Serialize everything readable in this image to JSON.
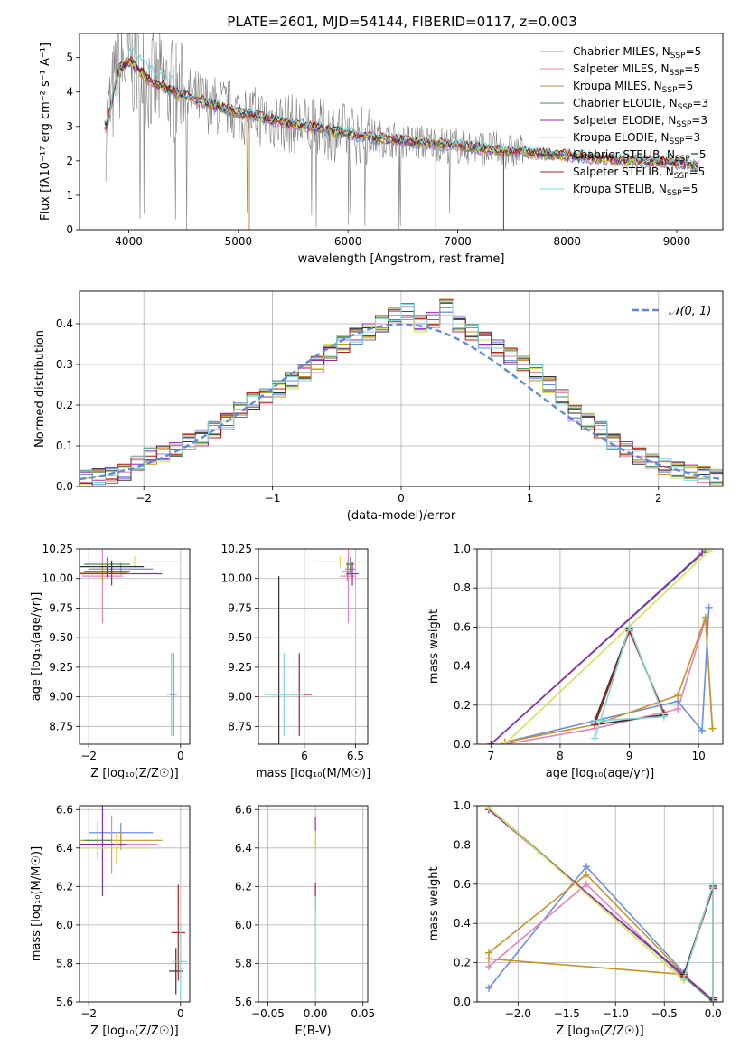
{
  "title": "PLATE=2601, MJD=54144, FIBERID=0117, z=0.003",
  "chart_data": [
    {
      "id": "spectrum",
      "type": "line",
      "xlabel": "wavelength [Angstrom, rest frame]",
      "ylabel": "Flux [fλ10⁻¹⁷ erg cm⁻² s⁻¹ A⁻¹]",
      "xlim": [
        3550,
        9420
      ],
      "ylim": [
        0,
        5.7
      ],
      "xticks": [
        4000,
        5000,
        6000,
        7000,
        8000,
        9000
      ],
      "yticks": [
        0,
        1,
        2,
        3,
        4,
        5
      ],
      "grid": false,
      "legend_position": "top-right",
      "data_color": "#808080",
      "data_trend": {
        "x": [
          3800,
          3900,
          4000,
          4200,
          4500,
          4800,
          5000,
          5300,
          5600,
          6000,
          6300,
          6600,
          7000,
          7400,
          7800,
          8200,
          8600,
          9000,
          9200
        ],
        "y": [
          3.0,
          4.6,
          4.9,
          4.3,
          3.9,
          3.6,
          3.4,
          3.2,
          3.0,
          2.8,
          2.65,
          2.55,
          2.45,
          2.3,
          2.2,
          2.1,
          2.0,
          1.95,
          1.85
        ]
      },
      "series": [
        {
          "name": "Chabrier MILES, N$_{SSP}$=5",
          "legend": "Chabrier MILES, N",
          "sub": "SSP",
          "tail": "=5",
          "color": "#6b8ee0"
        },
        {
          "name": "Salpeter MILES, N$_{SSP}$=5",
          "legend": "Salpeter MILES, N",
          "sub": "SSP",
          "tail": "=5",
          "color": "#e583b8"
        },
        {
          "name": "Kroupa MILES, N$_{SSP}$=5",
          "legend": "Kroupa MILES, N",
          "sub": "SSP",
          "tail": "=5",
          "color": "#c7932b"
        },
        {
          "name": "Chabrier ELODIE, N$_{SSP}$=3",
          "legend": "Chabrier ELODIE, N",
          "sub": "SSP",
          "tail": "=3",
          "color": "#4d8a4d"
        },
        {
          "name": "Salpeter ELODIE, N$_{SSP}$=3",
          "legend": "Salpeter ELODIE, N",
          "sub": "SSP",
          "tail": "=3",
          "color": "#8e2bb5"
        },
        {
          "name": "Kroupa ELODIE, N$_{SSP}$=3",
          "legend": "Kroupa ELODIE, N",
          "sub": "SSP",
          "tail": "=3",
          "color": "#d6e05a"
        },
        {
          "name": "Chabrier STELIB, N$_{SSP}$=5",
          "legend": "Chabrier STELIB, N",
          "sub": "SSP",
          "tail": "=5",
          "color": "#333333"
        },
        {
          "name": "Salpeter STELIB, N$_{SSP}$=5",
          "legend": "Salpeter STELIB, N",
          "sub": "SSP",
          "tail": "=5",
          "color": "#b51f1f"
        },
        {
          "name": "Kroupa STELIB, N$_{SSP}$=5",
          "legend": "Kroupa STELIB, N",
          "sub": "SSP",
          "tail": "=5",
          "color": "#7fd6d6"
        }
      ]
    },
    {
      "id": "residuals",
      "type": "line",
      "xlabel": "(data-model)/error",
      "ylabel": "Normed distribution",
      "xlim": [
        -2.5,
        2.5
      ],
      "ylim": [
        0,
        0.48
      ],
      "xticks": [
        -2,
        -1,
        0,
        1,
        2
      ],
      "yticks": [
        0.0,
        0.1,
        0.2,
        0.3,
        0.4
      ],
      "grid": true,
      "legend_position": "top-right",
      "legend": "𝒩(0, 1)",
      "gauss_color": "#5b8bd6",
      "hist_x": [
        -2.5,
        -2.4,
        -2.3,
        -2.2,
        -2.1,
        -2.0,
        -1.9,
        -1.8,
        -1.7,
        -1.6,
        -1.5,
        -1.4,
        -1.3,
        -1.2,
        -1.1,
        -1.0,
        -0.9,
        -0.8,
        -0.7,
        -0.6,
        -0.5,
        -0.4,
        -0.3,
        -0.2,
        -0.1,
        0.0,
        0.1,
        0.2,
        0.3,
        0.4,
        0.5,
        0.6,
        0.7,
        0.8,
        0.9,
        1.0,
        1.1,
        1.2,
        1.3,
        1.4,
        1.5,
        1.6,
        1.7,
        1.8,
        1.9,
        2.0,
        2.1,
        2.2,
        2.3,
        2.4
      ],
      "hist_y": [
        0.02,
        0.025,
        0.028,
        0.035,
        0.055,
        0.075,
        0.08,
        0.09,
        0.11,
        0.12,
        0.14,
        0.16,
        0.19,
        0.21,
        0.22,
        0.24,
        0.26,
        0.28,
        0.3,
        0.33,
        0.35,
        0.37,
        0.38,
        0.4,
        0.42,
        0.43,
        0.4,
        0.41,
        0.44,
        0.4,
        0.38,
        0.36,
        0.34,
        0.32,
        0.3,
        0.28,
        0.25,
        0.22,
        0.18,
        0.16,
        0.14,
        0.11,
        0.09,
        0.075,
        0.06,
        0.05,
        0.04,
        0.035,
        0.03,
        0.022
      ],
      "hist_jitter": [
        0.01,
        -0.02,
        0.015,
        -0.01,
        0.02,
        -0.015,
        0.0,
        0.012,
        -0.012,
        0.018
      ]
    },
    {
      "id": "age-Z",
      "type": "scatter",
      "xlabel": "Z [log₁₀(Z/Z☉)]",
      "ylabel": "age  [log₁₀(age/yr)]",
      "xlim": [
        -2.2,
        0.2
      ],
      "ylim": [
        8.6,
        10.25
      ],
      "xticks": [
        -2,
        0
      ],
      "yticks": [
        8.75,
        9.0,
        9.25,
        9.5,
        9.75,
        10.0,
        10.25
      ],
      "grid": true,
      "points": [
        {
          "x": -1.3,
          "y": 10.08,
          "xerr": 0.7,
          "yerr": 0.05,
          "s": 0
        },
        {
          "x": -1.7,
          "y": 10.02,
          "xerr": 0.45,
          "yerr": 0.4,
          "s": 1
        },
        {
          "x": -1.7,
          "y": 10.05,
          "xerr": 0.55,
          "yerr": 0.08,
          "s": 2
        },
        {
          "x": -1.6,
          "y": 10.12,
          "xerr": 0.5,
          "yerr": 0.06,
          "s": 3
        },
        {
          "x": -1.5,
          "y": 10.04,
          "xerr": 1.1,
          "yerr": 0.1,
          "s": 4
        },
        {
          "x": -1.0,
          "y": 10.14,
          "xerr": 1.0,
          "yerr": 0.05,
          "s": 5
        },
        {
          "x": -1.5,
          "y": 10.1,
          "xerr": 0.7,
          "yerr": 0.05,
          "s": 6
        },
        {
          "x": -1.6,
          "y": 10.06,
          "xerr": 0.5,
          "yerr": 0.05,
          "s": 7
        },
        {
          "x": -0.2,
          "y": 9.02,
          "xerr": 0.1,
          "yerr": 0.35,
          "s": 8
        },
        {
          "x": -0.15,
          "y": 9.02,
          "xerr": 0.08,
          "yerr": 0.35,
          "s": 0
        }
      ]
    },
    {
      "id": "age-mass",
      "type": "scatter",
      "xlabel": "mass [log₁₀(M/M☉)]",
      "ylabel": "",
      "xlim": [
        5.55,
        6.62
      ],
      "ylim": [
        8.6,
        10.25
      ],
      "xticks": [
        6.0,
        6.5
      ],
      "yticks": [
        8.75,
        9.0,
        9.25,
        9.5,
        9.75,
        10.0,
        10.25
      ],
      "grid": true,
      "points": [
        {
          "x": 6.45,
          "y": 10.08,
          "xerr": 0.05,
          "yerr": 0.05,
          "s": 0
        },
        {
          "x": 6.43,
          "y": 10.02,
          "xerr": 0.08,
          "yerr": 0.4,
          "s": 1
        },
        {
          "x": 6.42,
          "y": 10.06,
          "xerr": 0.05,
          "yerr": 0.08,
          "s": 2
        },
        {
          "x": 6.45,
          "y": 10.12,
          "xerr": 0.04,
          "yerr": 0.06,
          "s": 3
        },
        {
          "x": 6.47,
          "y": 10.04,
          "xerr": 0.06,
          "yerr": 0.1,
          "s": 4
        },
        {
          "x": 6.35,
          "y": 10.14,
          "xerr": 0.25,
          "yerr": 0.05,
          "s": 5
        },
        {
          "x": 5.75,
          "y": 9.02,
          "xerr": 0.05,
          "yerr": 1.0,
          "s": 6
        },
        {
          "x": 5.95,
          "y": 9.02,
          "xerr": 0.12,
          "yerr": 0.35,
          "s": 7
        },
        {
          "x": 5.8,
          "y": 9.02,
          "xerr": 0.2,
          "yerr": 0.35,
          "s": 8
        }
      ]
    },
    {
      "id": "massweight-age",
      "type": "line",
      "xlabel": "age  [log₁₀(age/yr)]",
      "ylabel": "mass weight",
      "xlim": [
        6.8,
        10.35
      ],
      "ylim": [
        0,
        1.0
      ],
      "xticks": [
        7,
        8,
        9,
        10
      ],
      "yticks": [
        0.0,
        0.2,
        0.4,
        0.6,
        0.8,
        1.0
      ],
      "grid": true,
      "lines": [
        {
          "s": 0,
          "x": [
            7.2,
            8.5,
            9.7,
            10.05,
            10.15
          ],
          "y": [
            0.01,
            0.12,
            0.22,
            0.07,
            0.7
          ]
        },
        {
          "s": 1,
          "x": [
            7.2,
            8.5,
            9.7,
            10.1,
            10.2
          ],
          "y": [
            0.0,
            0.08,
            0.18,
            0.64,
            0.08
          ]
        },
        {
          "s": 2,
          "x": [
            7.2,
            8.5,
            9.7,
            10.1,
            10.2
          ],
          "y": [
            0.01,
            0.1,
            0.25,
            0.65,
            0.08
          ]
        },
        {
          "s": 3,
          "x": [
            7.0,
            10.1
          ],
          "y": [
            0.0,
            0.99
          ]
        },
        {
          "s": 4,
          "x": [
            7.0,
            10.05
          ],
          "y": [
            0.0,
            0.98
          ]
        },
        {
          "s": 5,
          "x": [
            7.2,
            10.15
          ],
          "y": [
            0.0,
            0.99
          ]
        },
        {
          "s": 6,
          "x": [
            8.5,
            9.0,
            9.5,
            8.5
          ],
          "y": [
            0.12,
            0.59,
            0.15,
            0.1
          ]
        },
        {
          "s": 7,
          "x": [
            8.5,
            9.0,
            9.5
          ],
          "y": [
            0.1,
            0.58,
            0.16
          ]
        },
        {
          "s": 8,
          "x": [
            8.5,
            9.0,
            9.5,
            8.5
          ],
          "y": [
            0.03,
            0.6,
            0.14,
            0.12
          ]
        }
      ]
    },
    {
      "id": "mass-Z",
      "type": "scatter",
      "xlabel": "Z [log₁₀(Z/Z☉)]",
      "ylabel": "mass [log₁₀(M/M☉)]",
      "xlim": [
        -2.2,
        0.2
      ],
      "ylim": [
        5.6,
        6.62
      ],
      "xticks": [
        -2,
        0
      ],
      "yticks": [
        5.6,
        5.8,
        6.0,
        6.2,
        6.4,
        6.6
      ],
      "grid": true,
      "points": [
        {
          "x": -1.3,
          "y": 6.48,
          "xerr": 0.7,
          "yerr": 0.05,
          "s": 0
        },
        {
          "x": -1.5,
          "y": 6.42,
          "xerr": 1.0,
          "yerr": 0.15,
          "s": 1
        },
        {
          "x": -1.3,
          "y": 6.44,
          "xerr": 0.9,
          "yerr": 0.05,
          "s": 2
        },
        {
          "x": -1.8,
          "y": 6.44,
          "xerr": 0.3,
          "yerr": 0.1,
          "s": 3
        },
        {
          "x": -1.7,
          "y": 6.42,
          "xerr": 0.5,
          "yerr": 0.27,
          "s": 4
        },
        {
          "x": -1.4,
          "y": 6.4,
          "xerr": 0.8,
          "yerr": 0.08,
          "s": 5
        },
        {
          "x": -0.1,
          "y": 5.76,
          "xerr": 0.15,
          "yerr": 0.12,
          "s": 6
        },
        {
          "x": -0.05,
          "y": 5.96,
          "xerr": 0.15,
          "yerr": 0.25,
          "s": 7
        },
        {
          "x": 0.0,
          "y": 5.81,
          "xerr": 0.15,
          "yerr": 0.2,
          "s": 8
        }
      ]
    },
    {
      "id": "mass-ebv",
      "type": "scatter",
      "xlabel": "E(B-V)",
      "ylabel": "",
      "xlim": [
        -0.06,
        0.055
      ],
      "ylim": [
        5.6,
        6.62
      ],
      "xticks": [
        -0.05,
        0.0,
        0.05
      ],
      "xtick_labels": [
        "−0.05",
        "0.00",
        "0.05"
      ],
      "yticks": [
        5.6,
        5.8,
        6.0,
        6.2,
        6.4,
        6.6
      ],
      "grid": true,
      "points": [
        {
          "x": 0.0,
          "y": 6.48,
          "xerr": 0.0,
          "yerr": 0.08,
          "s": 4
        },
        {
          "x": 0.0,
          "y": 6.44,
          "xerr": 0.0,
          "yerr": 0.05,
          "s": 5
        },
        {
          "x": 0.0,
          "y": 6.15,
          "xerr": 0.0,
          "yerr": 0.07,
          "s": 7
        },
        {
          "x": 0.0,
          "y": 5.9,
          "xerr": 0.0,
          "yerr": 0.25,
          "s": 8
        }
      ]
    },
    {
      "id": "massweight-Z",
      "type": "line",
      "xlabel": "Z [log₁₀(Z/Z☉)]",
      "ylabel": "mass weight",
      "xlim": [
        -2.42,
        0.1
      ],
      "ylim": [
        0,
        1.0
      ],
      "xticks": [
        -2.0,
        -1.5,
        -1.0,
        -0.5,
        0.0
      ],
      "xtick_labels": [
        "−2.0",
        "−1.5",
        "−1.0",
        "−0.5",
        "0.0"
      ],
      "yticks": [
        0.0,
        0.2,
        0.4,
        0.6,
        0.8,
        1.0
      ],
      "grid": true,
      "lines": [
        {
          "s": 0,
          "x": [
            -2.3,
            -1.3,
            -0.3,
            -0.3
          ],
          "y": [
            0.07,
            0.69,
            0.15,
            0.12
          ]
        },
        {
          "s": 1,
          "x": [
            -2.3,
            -1.3,
            -0.3
          ],
          "y": [
            0.18,
            0.6,
            0.12
          ]
        },
        {
          "s": 2,
          "x": [
            -2.3,
            -1.3,
            -0.3,
            -2.3
          ],
          "y": [
            0.25,
            0.65,
            0.14,
            0.22
          ]
        },
        {
          "s": 3,
          "x": [
            -2.3,
            0.0
          ],
          "y": [
            0.99,
            0.0
          ]
        },
        {
          "s": 4,
          "x": [
            -2.3,
            0.0
          ],
          "y": [
            0.98,
            0.01
          ]
        },
        {
          "s": 5,
          "x": [
            -2.3,
            -0.3
          ],
          "y": [
            0.99,
            0.11
          ]
        },
        {
          "s": 6,
          "x": [
            -0.3,
            0.0,
            0.0
          ],
          "y": [
            0.14,
            0.59,
            0.01
          ]
        },
        {
          "s": 7,
          "x": [
            -0.3,
            0.0,
            0.0
          ],
          "y": [
            0.13,
            0.58,
            0.02
          ]
        },
        {
          "s": 8,
          "x": [
            -0.3,
            0.0,
            0.0
          ],
          "y": [
            0.12,
            0.6,
            0.0
          ]
        }
      ]
    }
  ]
}
